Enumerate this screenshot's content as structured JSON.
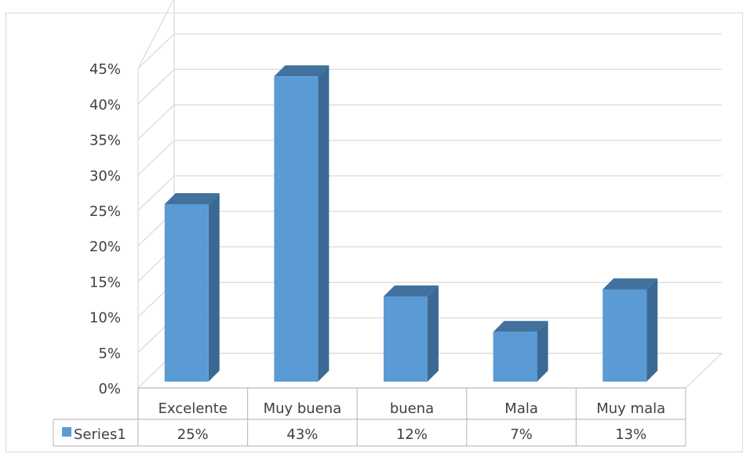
{
  "chart_data": {
    "type": "bar",
    "categories": [
      "Excelente",
      "Muy buena",
      "buena",
      "Mala",
      "Muy mala"
    ],
    "series": [
      {
        "name": "Series1",
        "values": [
          0.25,
          0.43,
          0.12,
          0.07,
          0.13
        ],
        "labels": [
          "25%",
          "43%",
          "12%",
          "7%",
          "13%"
        ],
        "color": "#5b9bd5",
        "side_color": "#3a6a94",
        "top_color": "#41719c"
      }
    ],
    "yticks": [
      "0%",
      "5%",
      "10%",
      "15%",
      "20%",
      "25%",
      "30%",
      "35%",
      "40%",
      "45%"
    ],
    "ylim": [
      0,
      0.45
    ],
    "grid": true,
    "data_table": true,
    "style": "3d-clustered-column"
  }
}
